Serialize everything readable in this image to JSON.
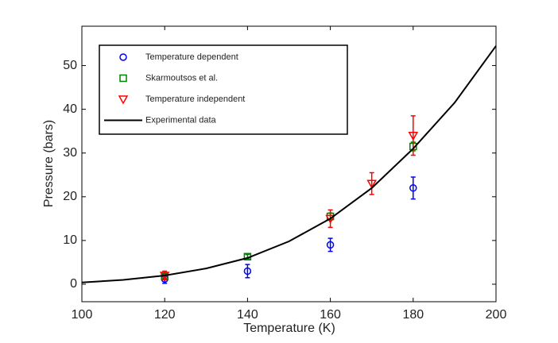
{
  "chart_data": {
    "type": "scatter",
    "xlabel": "Temperature (K)",
    "ylabel": "Pressure (bars)",
    "xlim": [
      100,
      200
    ],
    "xticks": [
      100,
      120,
      140,
      160,
      180,
      200
    ],
    "ylim": [
      -4,
      59
    ],
    "yticks": [
      0,
      10,
      20,
      30,
      40,
      50
    ],
    "legend": "upper left",
    "series": [
      {
        "name": "Temperature dependent",
        "color": "#0000ff",
        "marker": "circle",
        "x": [
          120,
          140,
          160,
          180
        ],
        "values": [
          1.2,
          3,
          9,
          22
        ],
        "errors": [
          1,
          1.5,
          1.5,
          2.5
        ]
      },
      {
        "name": "Skarmoutsos et al.",
        "color": "#008000",
        "marker": "square",
        "x": [
          120,
          140,
          160,
          180
        ],
        "values": [
          1.8,
          6.3,
          15.5,
          31.5
        ],
        "errors": [
          0.5,
          0.5,
          0.8,
          1
        ]
      },
      {
        "name": "Temperature independent",
        "color": "#ff0000",
        "marker": "triangle-down",
        "x": [
          120,
          160,
          170,
          180
        ],
        "values": [
          2,
          15,
          23,
          34
        ],
        "errors": [
          1,
          2,
          2.5,
          4.5
        ]
      },
      {
        "name": "Experimental data",
        "color": "#000000",
        "marker": "line",
        "x": [
          100,
          110,
          120,
          130,
          140,
          150,
          160,
          170,
          180,
          190,
          200
        ],
        "values": [
          0.4,
          1.0,
          2,
          3.6,
          6,
          9.8,
          15,
          22,
          31,
          41.5,
          54.5
        ]
      }
    ]
  }
}
